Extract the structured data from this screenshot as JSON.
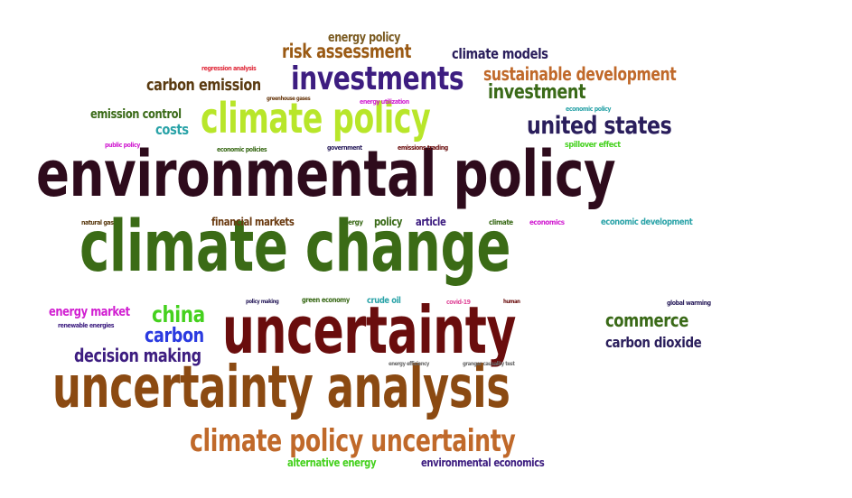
{
  "colors": {
    "dark_maroon": "#2e0b1c",
    "olive_green": "#3b6b16",
    "dark_red": "#6a0d0d",
    "brown": "#8b4a12",
    "orange_brown": "#c0692a",
    "lime": "#b8e62a",
    "navy": "#2a1e5c",
    "purple": "#3d1d80",
    "bright_green": "#45d11e",
    "blue": "#2a3ae0",
    "teal": "#2aa3a8",
    "magenta": "#d11ed1",
    "gold_brown": "#9a5a14",
    "forest_green": "#3a6a18",
    "gray": "#6a6a6a",
    "pink": "#e04a9a",
    "red": "#e02a3a"
  },
  "words": [
    {
      "text": "environmental policy",
      "color": "#2e0b1c"
    },
    {
      "text": "climate change",
      "color": "#3b6b16"
    },
    {
      "text": "uncertainty",
      "color": "#6a0d0d"
    },
    {
      "text": "uncertainty analysis",
      "color": "#8b4a12"
    },
    {
      "text": "climate policy uncertainty",
      "color": "#c0692a"
    },
    {
      "text": "climate policy",
      "color": "#b8e62a"
    },
    {
      "text": "investments",
      "color": "#3d1d80"
    },
    {
      "text": "united states",
      "color": "#2a1e5c"
    },
    {
      "text": "risk assessment",
      "color": "#9a5a14"
    },
    {
      "text": "sustainable development",
      "color": "#c0692a"
    },
    {
      "text": "investment",
      "color": "#3a6a18"
    },
    {
      "text": "carbon emission",
      "color": "#5a3a10"
    },
    {
      "text": "energy policy",
      "color": "#7a5a20"
    },
    {
      "text": "climate models",
      "color": "#2a1e5c"
    },
    {
      "text": "emission control",
      "color": "#3a6a18"
    },
    {
      "text": "costs",
      "color": "#2aa3a8"
    },
    {
      "text": "china",
      "color": "#45d11e"
    },
    {
      "text": "carbon",
      "color": "#2a3ae0"
    },
    {
      "text": "energy market",
      "color": "#d11ed1"
    },
    {
      "text": "decision making",
      "color": "#3d1d80"
    },
    {
      "text": "commerce",
      "color": "#3a6a18"
    },
    {
      "text": "carbon dioxide",
      "color": "#2a1e5c"
    },
    {
      "text": "financial markets",
      "color": "#6a3a10"
    },
    {
      "text": "policy",
      "color": "#3a6a18"
    },
    {
      "text": "article",
      "color": "#3d1d80"
    },
    {
      "text": "economic development",
      "color": "#2aa3a8"
    },
    {
      "text": "alternative energy",
      "color": "#45d11e"
    },
    {
      "text": "environmental economics",
      "color": "#3d1d80"
    },
    {
      "text": "crude oil",
      "color": "#2aa3a8"
    },
    {
      "text": "green economy",
      "color": "#3a6a18"
    },
    {
      "text": "regression analysis",
      "color": "#e02a3a"
    },
    {
      "text": "greenhouse gases",
      "color": "#6a3a10"
    },
    {
      "text": "energy utilization",
      "color": "#d11ed1"
    },
    {
      "text": "economic policy",
      "color": "#2aa3a8"
    },
    {
      "text": "public policy",
      "color": "#d11ed1"
    },
    {
      "text": "economic policies",
      "color": "#3a6a18"
    },
    {
      "text": "government",
      "color": "#2a1e5c"
    },
    {
      "text": "emissions trading",
      "color": "#6a0d0d"
    },
    {
      "text": "spillover effect",
      "color": "#45d11e"
    },
    {
      "text": "natural gas",
      "color": "#5a3a10"
    },
    {
      "text": "energy",
      "color": "#3a6a18"
    },
    {
      "text": "climate",
      "color": "#3a6a18"
    },
    {
      "text": "economics",
      "color": "#d11ed1"
    },
    {
      "text": "renewable energies",
      "color": "#3d1d80"
    },
    {
      "text": "policy making",
      "color": "#2a1e5c"
    },
    {
      "text": "covid-19",
      "color": "#e04a9a"
    },
    {
      "text": "human",
      "color": "#6a0d0d"
    },
    {
      "text": "global warming",
      "color": "#2a1e5c"
    },
    {
      "text": "energy efficiency",
      "color": "#6a6a6a"
    },
    {
      "text": "granger causality test",
      "color": "#6a6a6a"
    }
  ]
}
